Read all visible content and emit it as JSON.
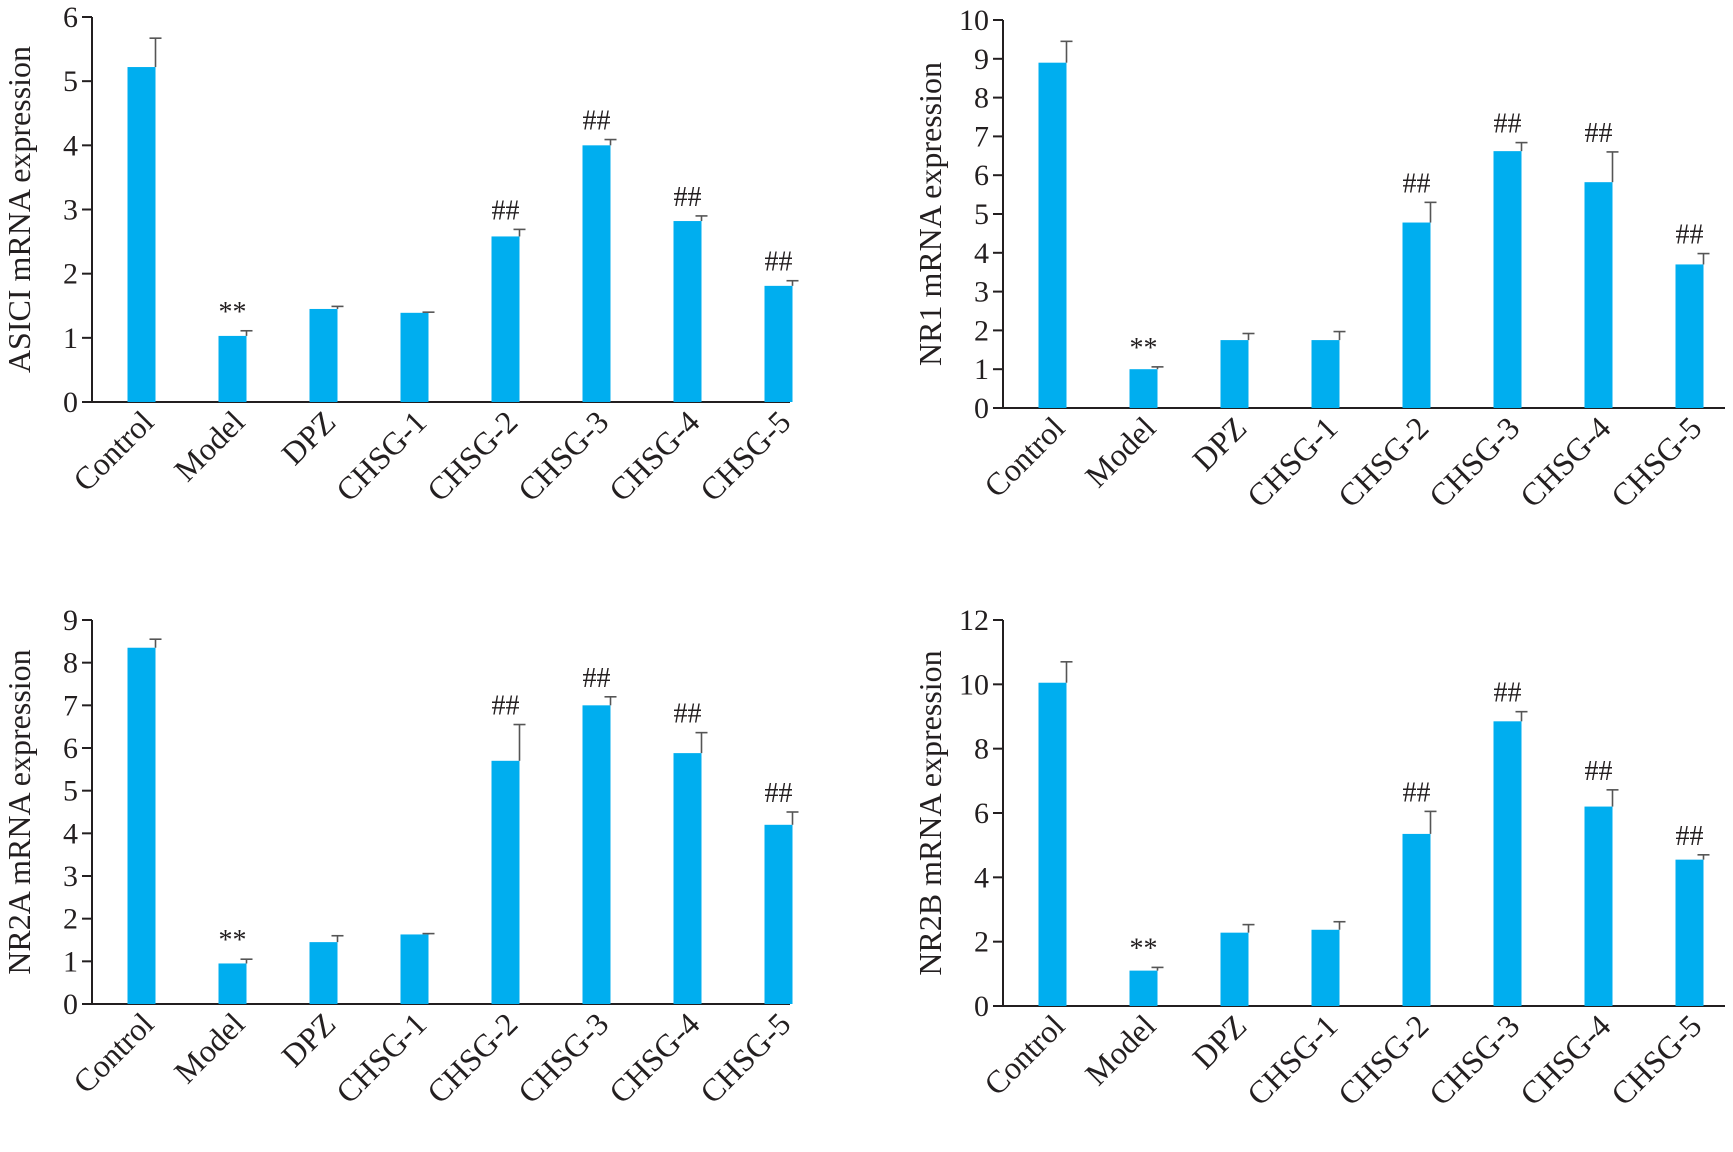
{
  "colors": {
    "bar": "#00aeef",
    "axis": "#231f20",
    "error_bar": "#555555"
  },
  "chart_data": [
    {
      "type": "bar",
      "ylabel": "ASICI mRNA expression",
      "categories": [
        "Control",
        "Model",
        "DPZ",
        "CHSG-1",
        "CHSG-2",
        "CHSG-3",
        "CHSG-4",
        "CHSG-5"
      ],
      "values": [
        5.22,
        1.03,
        1.45,
        1.39,
        2.58,
        4.0,
        2.82,
        1.81
      ],
      "errors": [
        0.45,
        0.08,
        0.04,
        0.01,
        0.11,
        0.09,
        0.08,
        0.08
      ],
      "annotations": [
        "",
        "**",
        "",
        "",
        "##",
        "##",
        "##",
        "##"
      ],
      "ylim": [
        0,
        6
      ],
      "yticks": [
        0,
        1,
        2,
        3,
        4,
        5,
        6
      ]
    },
    {
      "type": "bar",
      "ylabel": "NR1 mRNA expression",
      "categories": [
        "Control",
        "Model",
        "DPZ",
        "CHSG-1",
        "CHSG-2",
        "CHSG-3",
        "CHSG-4",
        "CHSG-5"
      ],
      "values": [
        8.9,
        1.0,
        1.75,
        1.75,
        4.78,
        6.62,
        5.82,
        3.7
      ],
      "errors": [
        0.55,
        0.06,
        0.17,
        0.22,
        0.52,
        0.22,
        0.78,
        0.28
      ],
      "annotations": [
        "",
        "**",
        "",
        "",
        "##",
        "##",
        "##",
        "##"
      ],
      "ylim": [
        0,
        10
      ],
      "yticks": [
        0,
        1,
        2,
        3,
        4,
        5,
        6,
        7,
        8,
        9,
        10
      ]
    },
    {
      "type": "bar",
      "ylabel": "NR2A mRNA expression",
      "categories": [
        "Control",
        "Model",
        "DPZ",
        "CHSG-1",
        "CHSG-2",
        "CHSG-3",
        "CHSG-4",
        "CHSG-5"
      ],
      "values": [
        8.35,
        0.95,
        1.45,
        1.63,
        5.7,
        7.0,
        5.88,
        4.2
      ],
      "errors": [
        0.2,
        0.1,
        0.15,
        0.02,
        0.85,
        0.2,
        0.48,
        0.3
      ],
      "annotations": [
        "",
        "**",
        "",
        "",
        "##",
        "##",
        "##",
        "##"
      ],
      "ylim": [
        0,
        9
      ],
      "yticks": [
        0,
        1,
        2,
        3,
        4,
        5,
        6,
        7,
        8,
        9
      ]
    },
    {
      "type": "bar",
      "ylabel": "NR2B mRNA expression",
      "categories": [
        "Control",
        "Model",
        "DPZ",
        "CHSG-1",
        "CHSG-2",
        "CHSG-3",
        "CHSG-4",
        "CHSG-5"
      ],
      "values": [
        10.05,
        1.1,
        2.28,
        2.37,
        5.35,
        8.85,
        6.2,
        4.55
      ],
      "errors": [
        0.65,
        0.1,
        0.25,
        0.25,
        0.7,
        0.3,
        0.52,
        0.15
      ],
      "annotations": [
        "",
        "**",
        "",
        "",
        "##",
        "##",
        "##",
        "##"
      ],
      "ylim": [
        0,
        12
      ],
      "yticks": [
        0,
        2,
        4,
        6,
        8,
        10,
        12
      ]
    }
  ]
}
